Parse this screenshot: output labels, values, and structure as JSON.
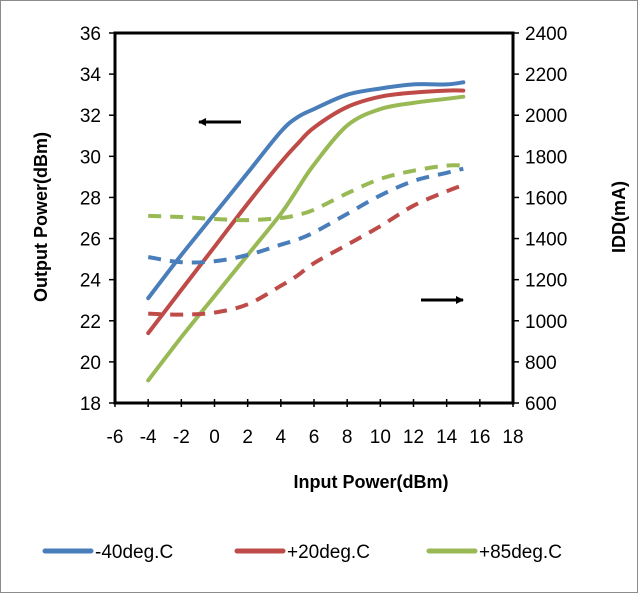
{
  "chart_data": {
    "type": "line",
    "title": "",
    "xlabel": "Input Power(dBm)",
    "ylabel": "Output Power(dBm)",
    "y2label": "IDD(mA)",
    "xlim": [
      -6,
      18
    ],
    "ylim": [
      18,
      36
    ],
    "y2lim": [
      600,
      2400
    ],
    "xticks": [
      -6,
      -4,
      -2,
      0,
      2,
      4,
      6,
      8,
      10,
      12,
      14,
      16,
      18
    ],
    "yticks": [
      18,
      20,
      22,
      24,
      26,
      28,
      30,
      32,
      34,
      36
    ],
    "y2ticks": [
      600,
      800,
      1000,
      1200,
      1400,
      1600,
      1800,
      2000,
      2200,
      2400
    ],
    "grid": false,
    "legend_position": "bottom",
    "annotations": [
      {
        "type": "arrow",
        "direction": "left",
        "meaning": "Output Power curves refer to the left axis"
      },
      {
        "type": "arrow",
        "direction": "right",
        "meaning": "IDD curves refer to the right axis"
      }
    ],
    "x": [
      -4,
      -2,
      0,
      2,
      4,
      5,
      6,
      8,
      10,
      12,
      14,
      15
    ],
    "series": [
      {
        "name": "-40deg.C",
        "axis": "left",
        "style": "solid",
        "color": "#4a7ebb",
        "values": [
          23.1,
          25.2,
          27.2,
          29.2,
          31.2,
          31.9,
          32.3,
          33.0,
          33.3,
          33.5,
          33.5,
          33.6
        ]
      },
      {
        "name": "+20deg.C",
        "axis": "left",
        "style": "solid",
        "color": "#be4b48",
        "values": [
          21.4,
          23.5,
          25.6,
          27.7,
          29.7,
          30.6,
          31.4,
          32.4,
          32.9,
          33.1,
          33.2,
          33.2
        ]
      },
      {
        "name": "+85deg.C",
        "axis": "left",
        "style": "solid",
        "color": "#98b954",
        "values": [
          19.1,
          21.2,
          23.2,
          25.2,
          27.2,
          28.4,
          29.6,
          31.5,
          32.3,
          32.6,
          32.8,
          32.9
        ]
      },
      {
        "name": "-40deg.C",
        "axis": "right",
        "style": "dashed",
        "color": "#4a7ebb",
        "legend": false,
        "values": [
          1310,
          1285,
          1290,
          1320,
          1370,
          1395,
          1430,
          1520,
          1610,
          1680,
          1720,
          1740
        ]
      },
      {
        "name": "+20deg.C",
        "axis": "right",
        "style": "dashed",
        "color": "#be4b48",
        "legend": false,
        "values": [
          1035,
          1030,
          1040,
          1080,
          1170,
          1220,
          1280,
          1370,
          1460,
          1560,
          1630,
          1660
        ]
      },
      {
        "name": "+85deg.C",
        "axis": "right",
        "style": "dashed",
        "color": "#98b954",
        "legend": false,
        "values": [
          1510,
          1505,
          1495,
          1490,
          1500,
          1515,
          1540,
          1620,
          1690,
          1730,
          1755,
          1755
        ]
      }
    ]
  }
}
